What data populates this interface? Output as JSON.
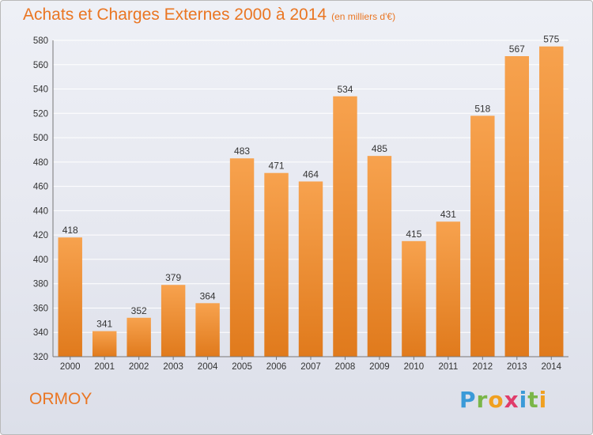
{
  "title": "Achats et Charges Externes 2000 à 2014",
  "unit": "(en milliers d'€)",
  "place": "ORMOY",
  "brand": {
    "letters": [
      "P",
      "r",
      "o",
      "x",
      "i",
      "t",
      "i"
    ],
    "colors": [
      "#3a9ad8",
      "#7ab648",
      "#f0a020",
      "#e03c6a",
      "#3a9ad8",
      "#7ab648",
      "#f0a020"
    ]
  },
  "colors": {
    "bar_top": "#f7a24e",
    "bar_bottom": "#e07a1c",
    "text": "#ea7623"
  },
  "chart_data": {
    "type": "bar",
    "categories": [
      "2000",
      "2001",
      "2002",
      "2003",
      "2004",
      "2005",
      "2006",
      "2007",
      "2008",
      "2009",
      "2010",
      "2011",
      "2012",
      "2013",
      "2014"
    ],
    "values": [
      418,
      341,
      352,
      379,
      364,
      483,
      471,
      464,
      534,
      485,
      415,
      431,
      518,
      567,
      575
    ],
    "ylim": [
      320,
      580
    ],
    "yticks": [
      320,
      340,
      360,
      380,
      400,
      420,
      440,
      460,
      480,
      500,
      520,
      540,
      560,
      580
    ],
    "grid": true
  }
}
